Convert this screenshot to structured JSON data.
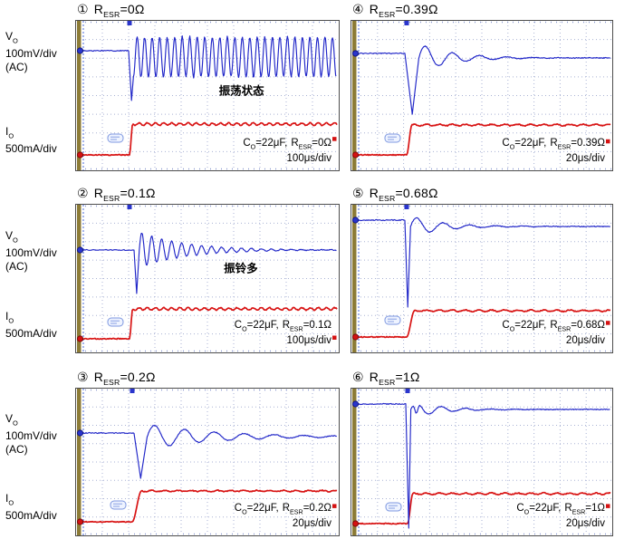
{
  "colors": {
    "vo_trace": "#2026c8",
    "io_trace": "#d81414",
    "grid_dot": "#a9b2d4",
    "edge_tick": "#8c9ad0",
    "left_bar": "#8c7b36",
    "left_scale_line": "#4a6ad8",
    "plot_border": "#4d4d4d",
    "marker_blue": "#2a35cc",
    "marker_red": "#d41212",
    "badge_stroke": "#7d97e0",
    "badge_fill": "#eef3ff"
  },
  "symbols": {
    "r": "R",
    "esr": "ESR",
    "c": "C",
    "o": "O"
  },
  "row_labels": {
    "vo": {
      "sym": "V",
      "sub": "O",
      "scale": "100mV/div",
      "coupling": "(AC)"
    },
    "io": {
      "sym": "I",
      "sub": "O",
      "scale": "500mA/div"
    }
  },
  "chart_data": {
    "type": "line",
    "vo_scale": "100mV/div",
    "vo_coupling": "AC",
    "io_scale": "500mA/div",
    "capacitance": "22μF",
    "grid_divs": [
      10,
      8
    ],
    "panels": [
      {
        "number": "①",
        "resr_value": "=0Ω",
        "resr_ohms": 0,
        "note": "振荡状态",
        "note_pos": [
          0.63,
          0.46
        ],
        "conditions": {
          "c_value": "=22μF,",
          "r_value": "=0Ω"
        },
        "timebase": "100μs/div",
        "col": 0,
        "row": 0,
        "marker_y": 0.79,
        "vo": {
          "mode": "sustained",
          "baseline": 0.2,
          "step_x": 0.2034,
          "dip": 0.533,
          "dip_w": 0.015,
          "center": 0.242,
          "amp": 0.133,
          "period": 0.0286
        },
        "io": {
          "baseline": 0.897,
          "top": 0.691,
          "step_x": 0.2034,
          "rise_w": 0.012,
          "ripple": 0.008,
          "ripple_p": 0.031
        }
      },
      {
        "number": "②",
        "resr_value": "=0.1Ω",
        "resr_ohms": 0.1,
        "note": "振铃多",
        "note_pos": [
          0.627,
          0.425
        ],
        "conditions": {
          "c_value": "=22μF,",
          "r_value": "=0.1Ω"
        },
        "timebase": "100μs/div",
        "col": 0,
        "row": 1,
        "marker_y": 0.9,
        "vo": {
          "mode": "damped",
          "baseline": 0.3067,
          "step_x": 0.2207,
          "dip": 0.601,
          "dip_w": 0.02,
          "settle": 0.3067,
          "amp": 0.123,
          "period": 0.038,
          "tau": 0.172
        },
        "io": {
          "baseline": 0.908,
          "top": 0.7055,
          "step_x": 0.2034,
          "rise_w": 0.012,
          "ripple": 0.008,
          "ripple_p": 0.031
        }
      },
      {
        "number": "③",
        "resr_value": "=0.2Ω",
        "resr_ohms": 0.2,
        "note": "",
        "note_pos": [
          0.5,
          0.5
        ],
        "conditions": {
          "c_value": "=22μF,",
          "r_value": "=0.2Ω"
        },
        "timebase": "20μs/div",
        "col": 0,
        "row": 2,
        "marker_y": 0.8,
        "vo": {
          "mode": "damped",
          "baseline": 0.3025,
          "step_x": 0.2207,
          "dip": 0.611,
          "dip_w": 0.05,
          "settle": 0.327,
          "amp": 0.085,
          "period": 0.1138,
          "tau": 0.26
        },
        "io": {
          "baseline": 0.9074,
          "top": 0.6975,
          "step_x": 0.2138,
          "rise_w": 0.035,
          "ripple": 0.004,
          "ripple_p": 0.05
        }
      },
      {
        "number": "④",
        "resr_value": "=0.39Ω",
        "resr_ohms": 0.39,
        "note": "",
        "note_pos": [
          0.5,
          0.5
        ],
        "conditions": {
          "c_value": "=22μF,",
          "r_value": "=0.39Ω"
        },
        "timebase": "20μs/div",
        "col": 1,
        "row": 0,
        "marker_y": 0.806,
        "vo": {
          "mode": "damped",
          "baseline": 0.218,
          "step_x": 0.2083,
          "dip": 0.624,
          "dip_w": 0.05,
          "settle": 0.248,
          "amp": 0.095,
          "period": 0.104,
          "tau": 0.128
        },
        "io": {
          "baseline": 0.897,
          "top": 0.697,
          "step_x": 0.2118,
          "rise_w": 0.02,
          "ripple": 0.005,
          "ripple_p": 0.05
        }
      },
      {
        "number": "⑤",
        "resr_value": "=0.68Ω",
        "resr_ohms": 0.68,
        "note": "",
        "note_pos": [
          0.5,
          0.5
        ],
        "conditions": {
          "c_value": "=22μF,",
          "r_value": "=0.68Ω"
        },
        "timebase": "20μs/div",
        "col": 1,
        "row": 1,
        "marker_y": 0.8,
        "vo": {
          "mode": "damped",
          "baseline": 0.1043,
          "step_x": 0.2049,
          "dip": 0.6933,
          "dip_w": 0.022,
          "settle": 0.1472,
          "amp": 0.07,
          "period": 0.1007,
          "tau": 0.122
        },
        "io": {
          "baseline": 0.8957,
          "top": 0.7178,
          "step_x": 0.2118,
          "rise_w": 0.03,
          "ripple": 0.005,
          "ripple_p": 0.05
        }
      },
      {
        "number": "⑥",
        "resr_value": "=1Ω",
        "resr_ohms": 1,
        "note": "",
        "note_pos": [
          0.5,
          0.5
        ],
        "conditions": {
          "c_value": "=22μF,",
          "r_value": "=1Ω"
        },
        "timebase": "20μs/div",
        "col": 1,
        "row": 2,
        "marker_y": 0.8,
        "vo": {
          "mode": "damped",
          "baseline": 0.1049,
          "step_x": 0.2118,
          "dip": 0.9506,
          "dip_w": 0.016,
          "settle": 0.142,
          "amp": 0.062,
          "period": 0.0938,
          "tau": 0.104,
          "notch": {
            "dt": 0.021,
            "depth": 0.075,
            "w": 0.006
          }
        },
        "io": {
          "baseline": 0.9198,
          "top": 0.716,
          "step_x": 0.2153,
          "rise_w": 0.02,
          "ripple": 0.005,
          "ripple_p": 0.05
        }
      }
    ]
  }
}
